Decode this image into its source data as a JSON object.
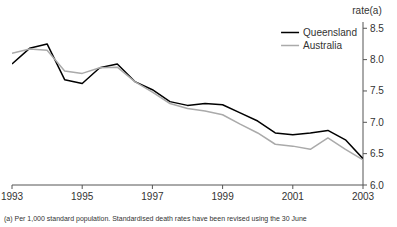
{
  "chart_data": {
    "type": "line",
    "x": [
      1993,
      1993.5,
      1994,
      1994.5,
      1995,
      1995.5,
      1996,
      1996.5,
      1997,
      1997.5,
      1998,
      1998.5,
      1999,
      1999.5,
      2000,
      2000.5,
      2001,
      2001.5,
      2002,
      2002.5,
      2003
    ],
    "series": [
      {
        "name": "Queensland",
        "color": "#000000",
        "values": [
          7.93,
          8.18,
          8.25,
          7.68,
          7.62,
          7.87,
          7.93,
          7.65,
          7.52,
          7.33,
          7.27,
          7.3,
          7.28,
          7.15,
          7.02,
          6.83,
          6.8,
          6.83,
          6.87,
          6.72,
          6.42
        ]
      },
      {
        "name": "Australia",
        "color": "#aaaaaa",
        "values": [
          8.1,
          8.17,
          8.15,
          7.82,
          7.78,
          7.87,
          7.88,
          7.65,
          7.48,
          7.3,
          7.22,
          7.18,
          7.12,
          6.97,
          6.83,
          6.65,
          6.62,
          6.57,
          6.75,
          6.57,
          6.4
        ]
      }
    ],
    "xlim": [
      1993,
      2003
    ],
    "xticks": [
      1993,
      1995,
      1997,
      1999,
      2001,
      2003
    ],
    "ylim": [
      6.0,
      8.6
    ],
    "yticks": [
      {
        "value": 6.0,
        "label": "6.0"
      },
      6.5,
      {
        "value": 7.0,
        "label": "7.0"
      },
      7.5,
      {
        "value": 8.0,
        "label": "8.0"
      },
      8.5
    ],
    "y_label": "rate(a)",
    "footnote": "(a) Per 1,000 standard population. Standardised death rates have been revised using the 30 June",
    "legend": "upper right",
    "grid": false
  }
}
